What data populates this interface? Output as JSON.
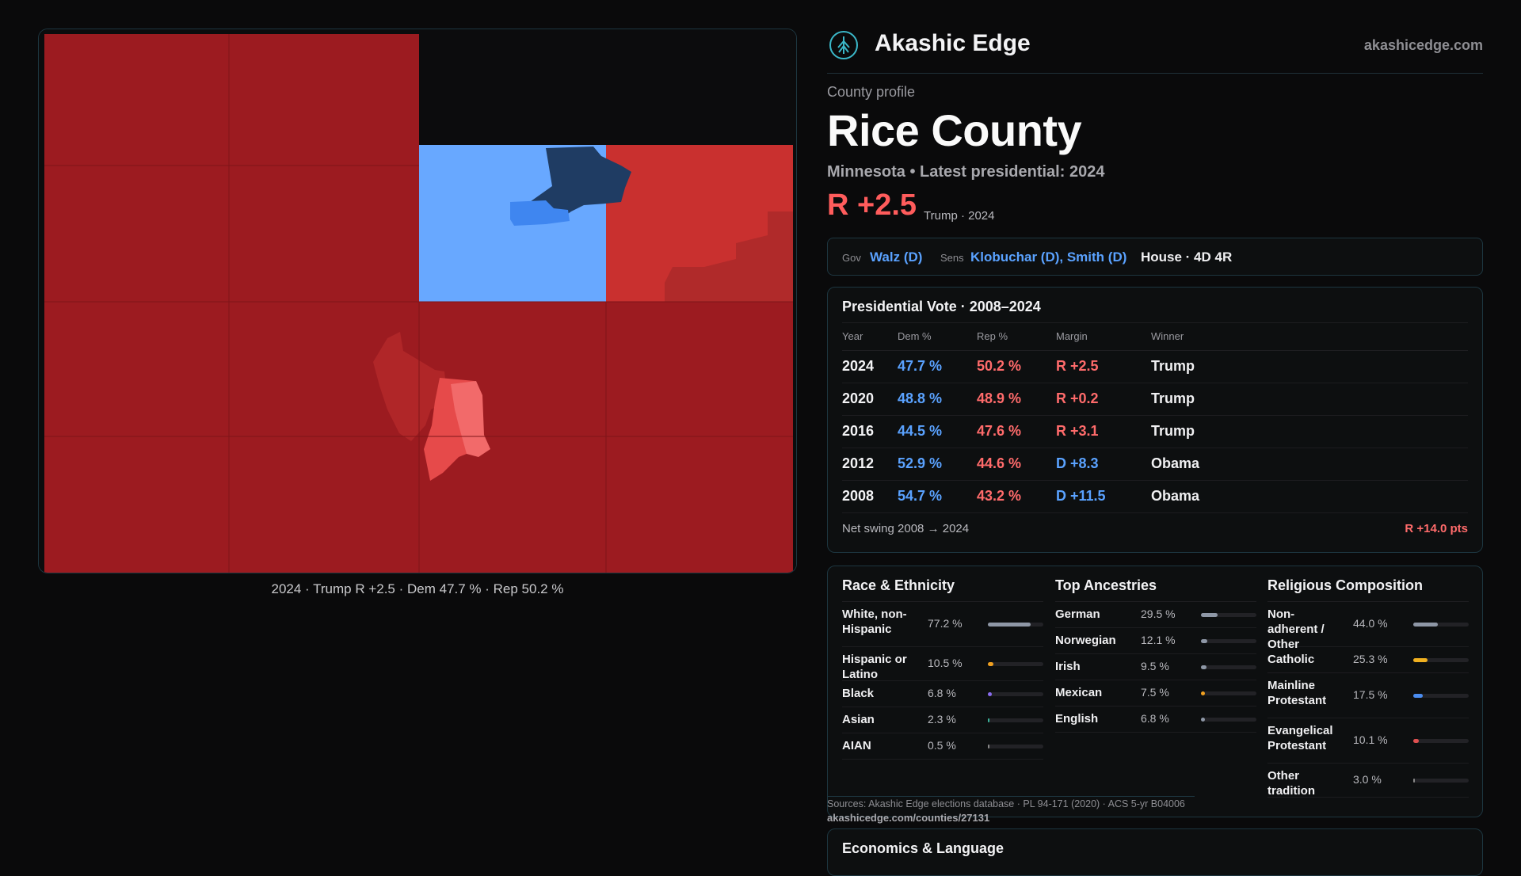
{
  "map": {
    "caption": "2024 · Trump R +2.5 · Dem 47.7 % · Rep 50.2 %",
    "colors": {
      "rep_dark": "#9c1b20",
      "rep_mid": "#c9302f",
      "rep_light": "#e64a4a",
      "rep_pale": "#f26a6a",
      "dem_light": "#68a8ff",
      "dem_mid": "#3f86f0",
      "dem_dark": "#1f3c63",
      "background": "#0c0c0d"
    }
  },
  "brand": {
    "name": "Akashic Edge",
    "url": "akashicedge.com",
    "logo_icon": "tree-icon"
  },
  "profile": {
    "eyebrow": "County profile",
    "title": "Rice County",
    "subtitle": "Minnesota • Latest presidential: 2024",
    "margin": "R +2.5",
    "margin_note": "Trump · 2024"
  },
  "officials": {
    "gov_label": "Gov",
    "gov": "Walz (D)",
    "sens_label": "Sens",
    "sens": "Klobuchar (D), Smith (D)",
    "house": "House · 4D 4R"
  },
  "presidential": {
    "title": "Presidential Vote · 2008–2024",
    "headers": {
      "year": "Year",
      "dem": "Dem %",
      "rep": "Rep %",
      "margin": "Margin",
      "winner": "Winner"
    },
    "rows": [
      {
        "year": "2024",
        "dem": "47.7 %",
        "rep": "50.2 %",
        "margin": "R +2.5",
        "winner": "Trump"
      },
      {
        "year": "2020",
        "dem": "48.8 %",
        "rep": "48.9 %",
        "margin": "R +0.2",
        "winner": "Trump"
      },
      {
        "year": "2016",
        "dem": "44.5 %",
        "rep": "47.6 %",
        "margin": "R +3.1",
        "winner": "Trump"
      },
      {
        "year": "2012",
        "dem": "52.9 %",
        "rep": "44.6 %",
        "margin": "D +8.3",
        "winner": "Obama"
      },
      {
        "year": "2008",
        "dem": "54.7 %",
        "rep": "43.2 %",
        "margin": "D +11.5",
        "winner": "Obama"
      }
    ],
    "swing_label": "Net swing 2008 → 2024",
    "swing_value": "R +14.0 pts"
  },
  "race": {
    "title": "Race & Ethnicity",
    "items": [
      {
        "label": "White, non-Hispanic",
        "value": "77.2 %",
        "fraction": 0.772,
        "color": "#8e97a6"
      },
      {
        "label": "Hispanic or Latino",
        "value": "10.5 %",
        "fraction": 0.105,
        "color": "#f0a020"
      },
      {
        "label": "Black",
        "value": "6.8 %",
        "fraction": 0.068,
        "color": "#8a6cf0"
      },
      {
        "label": "Asian",
        "value": "2.3 %",
        "fraction": 0.023,
        "color": "#39b39a"
      },
      {
        "label": "AIAN",
        "value": "0.5 %",
        "fraction": 0.005,
        "color": "#888888"
      }
    ]
  },
  "ancestry": {
    "title": "Top Ancestries",
    "items": [
      {
        "label": "German",
        "value": "29.5 %",
        "fraction": 0.295,
        "color": "#8e97a6"
      },
      {
        "label": "Norwegian",
        "value": "12.1 %",
        "fraction": 0.121,
        "color": "#8e97a6"
      },
      {
        "label": "Irish",
        "value": "9.5 %",
        "fraction": 0.095,
        "color": "#8e97a6"
      },
      {
        "label": "Mexican",
        "value": "7.5 %",
        "fraction": 0.075,
        "color": "#f0a020"
      },
      {
        "label": "English",
        "value": "6.8 %",
        "fraction": 0.068,
        "color": "#8e97a6"
      }
    ]
  },
  "religion": {
    "title": "Religious Composition",
    "items": [
      {
        "label": "Non-adherent / Other",
        "value": "44.0 %",
        "fraction": 0.44,
        "color": "#8e97a6"
      },
      {
        "label": "Catholic",
        "value": "25.3 %",
        "fraction": 0.253,
        "color": "#f0b020"
      },
      {
        "label": "Mainline Protestant",
        "value": "17.5 %",
        "fraction": 0.175,
        "color": "#4a8cf0"
      },
      {
        "label": "Evangelical Protestant",
        "value": "10.1 %",
        "fraction": 0.101,
        "color": "#e05050"
      },
      {
        "label": "Other tradition",
        "value": "3.0 %",
        "fraction": 0.03,
        "color": "#888888"
      }
    ]
  },
  "sources": {
    "text": "Sources: Akashic Edge elections database · PL 94-171 (2020) · ACS 5-yr B04006",
    "url": "akashicedge.com/counties/27131"
  },
  "economics": {
    "title": "Economics & Language"
  }
}
